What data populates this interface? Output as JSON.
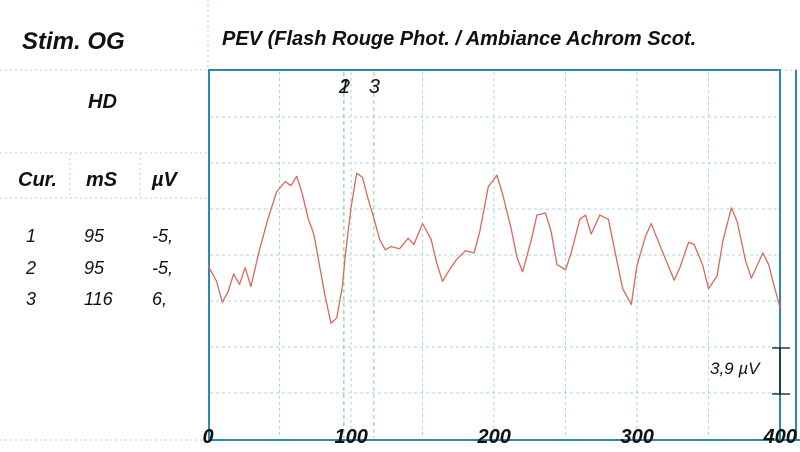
{
  "header": {
    "stim_title": "Stim. OG",
    "chart_title": "PEV (Flash Rouge Phot. / Ambiance Achrom Scot."
  },
  "cursor_table": {
    "eye": "HD",
    "headers": [
      "Cur.",
      "mS",
      "µV"
    ],
    "rows": [
      [
        "1",
        "95",
        "-5,"
      ],
      [
        "2",
        "95",
        "-5,"
      ],
      [
        "3",
        "116",
        "6,"
      ]
    ]
  },
  "scale": {
    "label": "3,9 µV"
  },
  "colors": {
    "trace": "#d9695a",
    "frame": "#2a8aa8",
    "grid": "#a9d6e5"
  },
  "chart_data": {
    "type": "line",
    "title": "PEV (Flash Rouge Phot. / Ambiance Achrom Scot.",
    "xlabel": "",
    "ylabel": "",
    "xlim": [
      0,
      400
    ],
    "xticks": [
      "0",
      "100",
      "200",
      "300",
      "400"
    ],
    "grid": true,
    "markers": [
      {
        "label": "1",
        "x": 95
      },
      {
        "label": "2",
        "x": 95
      },
      {
        "label": "3",
        "x": 116
      }
    ],
    "series": [
      {
        "x": [
          0,
          6,
          10,
          14,
          18,
          22,
          26,
          30,
          36,
          42,
          48,
          54,
          58,
          62,
          66,
          70,
          74,
          78,
          82,
          86,
          90,
          94,
          96,
          100,
          104,
          108,
          112,
          116,
          120,
          124,
          128,
          134,
          140,
          144,
          150,
          156,
          160,
          164,
          168,
          174,
          180,
          186,
          190,
          196,
          202,
          206,
          212,
          216,
          220,
          226,
          230,
          236,
          240,
          244,
          250,
          254,
          260,
          264,
          268,
          274,
          280,
          286,
          290,
          296,
          300,
          306,
          310,
          314,
          320,
          326,
          330,
          336,
          340,
          346,
          350,
          356,
          360,
          366,
          370,
          376,
          380,
          384,
          388,
          392,
          396,
          400
        ],
        "y": [
          -1.0,
          -2.5,
          -4.5,
          -3.5,
          -1.8,
          -2.8,
          -1.2,
          -3.0,
          0.5,
          3.5,
          6.0,
          7.0,
          6.6,
          7.5,
          5.8,
          3.5,
          2.0,
          -1.0,
          -4.0,
          -6.5,
          -6.0,
          -3.0,
          0.0,
          4.5,
          7.8,
          7.4,
          5.3,
          3.5,
          1.5,
          0.5,
          0.8,
          0.6,
          1.6,
          1.0,
          3.0,
          1.5,
          -0.8,
          -2.5,
          -1.6,
          -0.4,
          0.4,
          0.2,
          2.2,
          6.5,
          7.6,
          5.8,
          2.5,
          -0.2,
          -1.6,
          1.4,
          3.8,
          4.0,
          2.2,
          -0.9,
          -1.4,
          0.2,
          3.4,
          3.8,
          2.0,
          3.8,
          3.4,
          -0.6,
          -3.2,
          -4.7,
          -1.0,
          1.8,
          3.0,
          1.6,
          -0.4,
          -2.4,
          -1.2,
          1.2,
          1.0,
          -1.0,
          -3.2,
          -2.0,
          1.3,
          4.5,
          3.2,
          -0.6,
          -2.2,
          -1.0,
          0.2,
          -0.9,
          -3.0,
          -5.0
        ]
      }
    ]
  }
}
